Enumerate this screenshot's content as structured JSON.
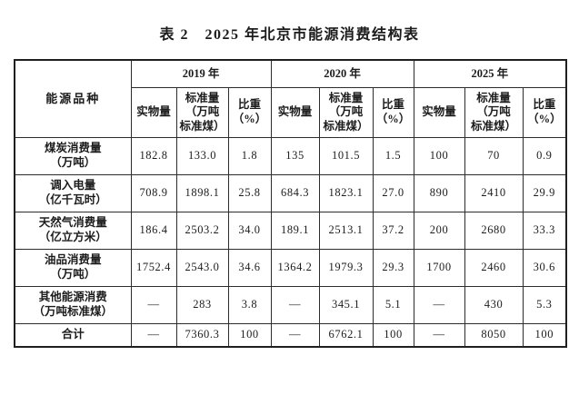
{
  "title": "表 2　2025 年北京市能源消费结构表",
  "table": {
    "corner_header": "能源品种",
    "year_groups": [
      {
        "label": "2019 年",
        "sub": [
          "实物量",
          "标准量\n（万吨\n标准煤）",
          "比重\n（%）"
        ]
      },
      {
        "label": "2020 年",
        "sub": [
          "实物量",
          "标准量\n（万吨\n标准煤）",
          "比重\n（%）"
        ]
      },
      {
        "label": "2025 年",
        "sub": [
          "实物量",
          "标准量\n（万吨\n标准煤）",
          "比重\n（%）"
        ]
      }
    ],
    "rows": [
      {
        "label": "煤炭消费量\n（万吨）",
        "values": [
          "182.8",
          "133.0",
          "1.8",
          "135",
          "101.5",
          "1.5",
          "100",
          "70",
          "0.9"
        ]
      },
      {
        "label": "调入电量\n（亿千瓦时）",
        "values": [
          "708.9",
          "1898.1",
          "25.8",
          "684.3",
          "1823.1",
          "27.0",
          "890",
          "2410",
          "29.9"
        ]
      },
      {
        "label": "天然气消费量\n（亿立方米）",
        "values": [
          "186.4",
          "2503.2",
          "34.0",
          "189.1",
          "2513.1",
          "37.2",
          "200",
          "2680",
          "33.3"
        ]
      },
      {
        "label": "油品消费量\n（万吨）",
        "values": [
          "1752.4",
          "2543.0",
          "34.6",
          "1364.2",
          "1979.3",
          "29.3",
          "1700",
          "2460",
          "30.6"
        ]
      },
      {
        "label": "其他能源消费\n（万吨标准煤）",
        "values": [
          "—",
          "283",
          "3.8",
          "—",
          "345.1",
          "5.1",
          "—",
          "430",
          "5.3"
        ]
      },
      {
        "label": "合计",
        "values": [
          "—",
          "7360.3",
          "100",
          "—",
          "6762.1",
          "100",
          "—",
          "8050",
          "100"
        ]
      }
    ]
  },
  "colors": {
    "text": "#1c1c1c",
    "border": "#2c2c2c",
    "background": "#ffffff"
  }
}
